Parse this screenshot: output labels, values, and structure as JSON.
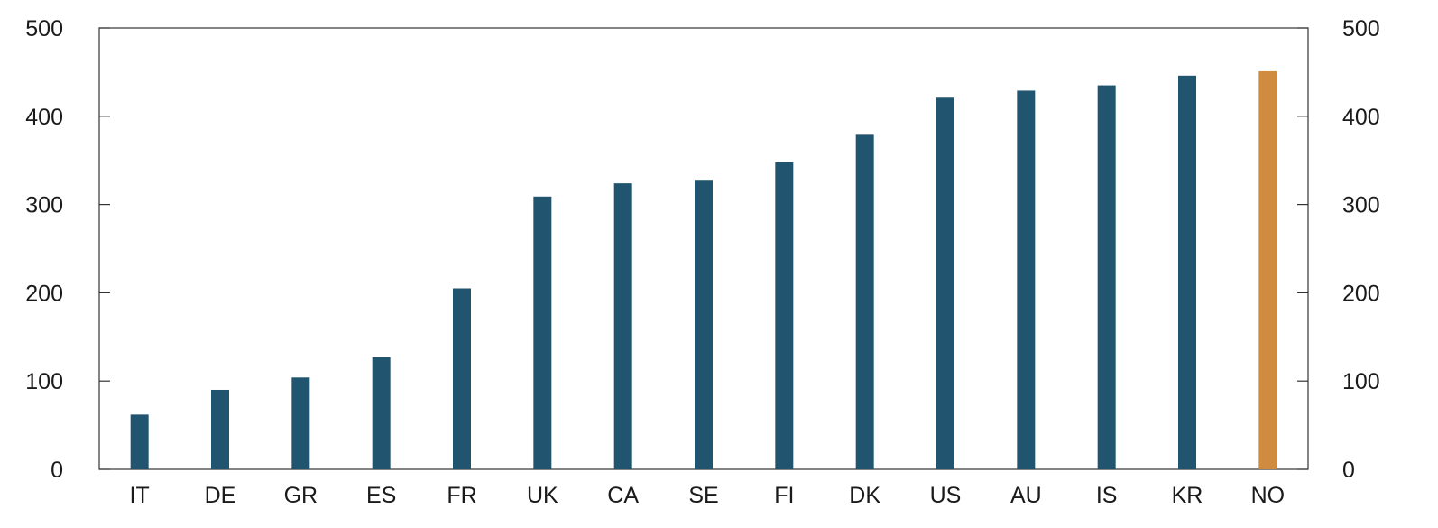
{
  "chart_data": {
    "type": "bar",
    "title": "",
    "xlabel": "",
    "ylabel": "",
    "categories": [
      "IT",
      "DE",
      "GR",
      "ES",
      "FR",
      "UK",
      "CA",
      "SE",
      "FI",
      "DK",
      "US",
      "AU",
      "IS",
      "KR",
      "NO"
    ],
    "values": [
      62,
      90,
      104,
      127,
      205,
      309,
      324,
      328,
      348,
      379,
      421,
      429,
      435,
      446,
      451
    ],
    "ylim": [
      0,
      500
    ],
    "yticks": [
      0,
      100,
      200,
      300,
      400,
      500
    ],
    "y_axis_right_mirrored": true,
    "grid": false,
    "legend": "none",
    "highlight_category": "NO",
    "colors": {
      "bar": "#21556f",
      "highlight": "#d08b3f",
      "axis": "#333333"
    }
  }
}
